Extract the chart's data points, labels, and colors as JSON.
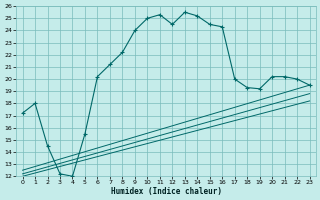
{
  "xlabel": "Humidex (Indice chaleur)",
  "bg_color": "#c5ecea",
  "grid_color": "#7abcbc",
  "line_color": "#006868",
  "xlim": [
    -0.5,
    23.5
  ],
  "ylim": [
    12,
    26
  ],
  "xticks": [
    0,
    1,
    2,
    3,
    4,
    5,
    6,
    7,
    8,
    9,
    10,
    11,
    12,
    13,
    14,
    15,
    16,
    17,
    18,
    19,
    20,
    21,
    22,
    23
  ],
  "yticks": [
    12,
    13,
    14,
    15,
    16,
    17,
    18,
    19,
    20,
    21,
    22,
    23,
    24,
    25,
    26
  ],
  "main_x": [
    0,
    1,
    2,
    3,
    4,
    5,
    6,
    7,
    8,
    9,
    10,
    11,
    12,
    13,
    14,
    15,
    16,
    17,
    18,
    19,
    20,
    21,
    22,
    23
  ],
  "main_y": [
    17.2,
    18.0,
    14.5,
    12.2,
    12.0,
    15.5,
    20.2,
    21.2,
    22.2,
    24.0,
    25.0,
    25.3,
    24.5,
    25.5,
    25.2,
    24.5,
    24.3,
    20.0,
    19.3,
    19.2,
    20.2,
    20.2,
    20.0,
    19.5
  ],
  "line2_x": [
    0,
    23
  ],
  "line2_y": [
    12.5,
    19.5
  ],
  "line3_x": [
    0,
    23
  ],
  "line3_y": [
    12.2,
    18.8
  ],
  "line4_x": [
    0,
    23
  ],
  "line4_y": [
    12.0,
    18.2
  ]
}
